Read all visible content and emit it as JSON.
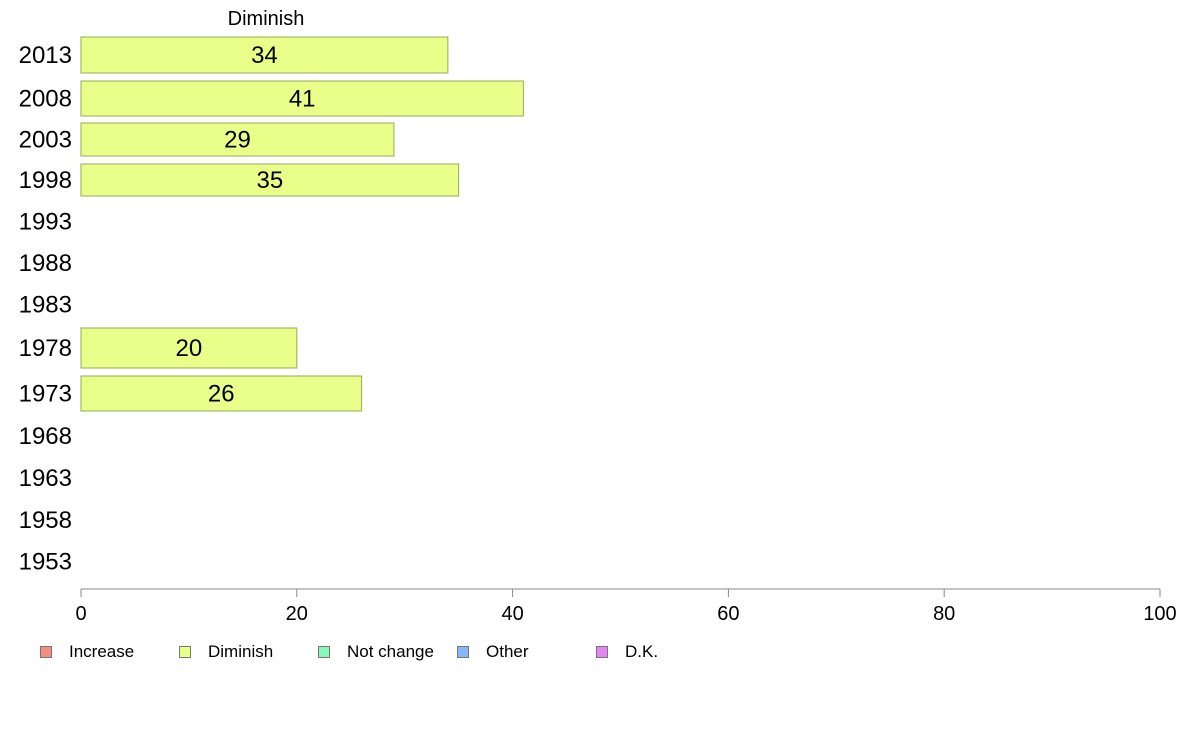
{
  "chart_data": {
    "type": "bar",
    "orientation": "horizontal",
    "stacked": true,
    "column_title": "Diminish",
    "categories": [
      "2013",
      "2008",
      "2003",
      "1998",
      "1993",
      "1988",
      "1983",
      "1978",
      "1973",
      "1968",
      "1963",
      "1958",
      "1953"
    ],
    "series": [
      {
        "name": "Increase",
        "color": "#f98b84",
        "values": [
          null,
          null,
          null,
          null,
          null,
          null,
          null,
          null,
          null,
          null,
          null,
          null,
          null
        ]
      },
      {
        "name": "Diminish",
        "color": "#eaff8a",
        "values": [
          34,
          41,
          29,
          35,
          null,
          null,
          null,
          20,
          26,
          null,
          null,
          null,
          null
        ]
      },
      {
        "name": "Not change",
        "color": "#86f9b8",
        "values": [
          null,
          null,
          null,
          null,
          null,
          null,
          null,
          null,
          null,
          null,
          null,
          null,
          null
        ]
      },
      {
        "name": "Other",
        "color": "#86b8f9",
        "values": [
          null,
          null,
          null,
          null,
          null,
          null,
          null,
          null,
          null,
          null,
          null,
          null,
          null
        ]
      },
      {
        "name": "D.K.",
        "color": "#e585f5",
        "values": [
          null,
          null,
          null,
          null,
          null,
          null,
          null,
          null,
          null,
          null,
          null,
          null,
          null
        ]
      }
    ],
    "data_labels": [
      "34",
      "41",
      "29",
      "35",
      "",
      "",
      "",
      "20",
      "26",
      "",
      "",
      "",
      ""
    ],
    "xlim": [
      0,
      100
    ],
    "xticks": [
      "0",
      "20",
      "40",
      "60",
      "80",
      "100"
    ],
    "grid": false,
    "legend_position": "bottom"
  }
}
